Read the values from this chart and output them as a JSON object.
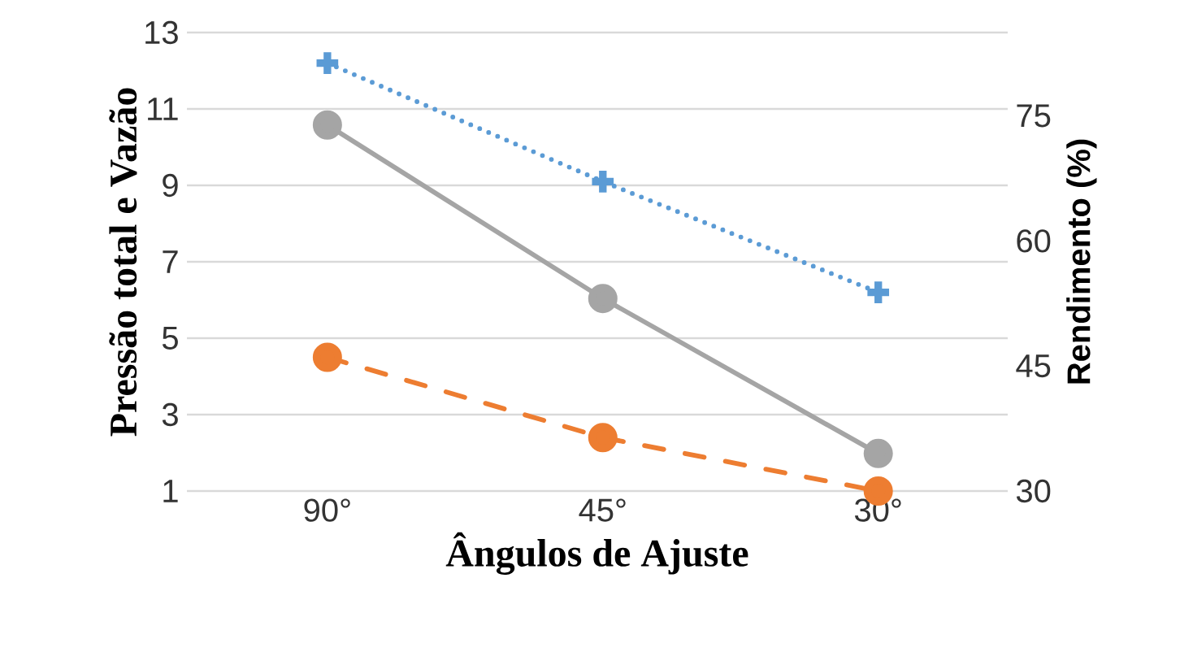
{
  "chart_data": {
    "type": "line",
    "xlabel": "Ângulos de Ajuste",
    "ylabel": "Pressão total e Vazão",
    "y2label": "Rendimento (%)",
    "categories": [
      "90°",
      "45°",
      "30°"
    ],
    "ylim": [
      1,
      13
    ],
    "yticks": [
      1,
      3,
      5,
      7,
      9,
      11,
      13
    ],
    "y2lim": [
      30,
      85
    ],
    "y2ticks": [
      30,
      45,
      60,
      75
    ],
    "grid": "y",
    "series": [
      {
        "color": "#5b9bd5",
        "values": [
          12.2,
          9.1,
          6.2
        ],
        "marker": "cross",
        "line_style": "dotted"
      },
      {
        "color": "#ed7d31",
        "values": [
          4.5,
          2.4,
          1.0
        ],
        "marker": "circle",
        "line_style": "dashed"
      },
      {
        "color": "#a5a5a5",
        "values": [
          73.9,
          53.1,
          34.5
        ],
        "marker": "circle",
        "line_style": "solid",
        "axis": "y2"
      }
    ]
  }
}
